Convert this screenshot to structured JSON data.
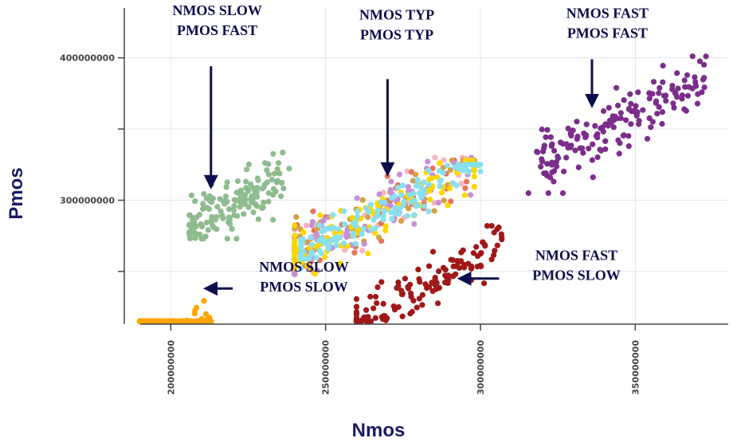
{
  "chart_data": {
    "type": "scatter",
    "xlabel": "Nmos",
    "ylabel": "Pmos",
    "xlim": [
      185000000,
      380000000
    ],
    "ylim": [
      213000000,
      435000000
    ],
    "xticks": [
      {
        "value": 200000000,
        "label": "200000000"
      },
      {
        "value": 250000000,
        "label": "250000000"
      },
      {
        "value": 300000000,
        "label": "300000000"
      },
      {
        "value": 350000000,
        "label": "350000000"
      }
    ],
    "yticks": [
      {
        "value": 250000000,
        "label": ""
      },
      {
        "value": 300000000,
        "label": "300000000"
      },
      {
        "value": 350000000,
        "label": ""
      },
      {
        "value": 400000000,
        "label": "400000000"
      }
    ],
    "grid": true,
    "series": [
      {
        "color": "#ffa500",
        "n": 160,
        "x_center": 200000000,
        "x_spread": 14000000,
        "slope": 1.0,
        "y_intercept": 0,
        "y_noise": 7500000,
        "x_min": 190000000,
        "x_max": 216000000,
        "y_min": 215000000,
        "y_max": 256000000,
        "seed": 11
      },
      {
        "color": "#8fbc8f",
        "n": 150,
        "x_center": 221000000,
        "x_spread": 18000000,
        "slope": 1.1,
        "y_intercept": 54000000,
        "y_noise": 9000000,
        "x_min": 206000000,
        "x_max": 242000000,
        "y_min": 273000000,
        "y_max": 355000000,
        "seed": 23
      },
      {
        "color": "#f4b6c2",
        "n": 30,
        "x_center": 263000000,
        "x_spread": 38000000,
        "slope": 1.1,
        "y_intercept": -3000000,
        "y_noise": 12000000,
        "x_min": 240000000,
        "x_max": 300000000,
        "y_min": 248000000,
        "y_max": 330000000,
        "seed": 31
      },
      {
        "color": "#e6735c",
        "n": 60,
        "x_center": 262000000,
        "x_spread": 38000000,
        "slope": 1.1,
        "y_intercept": -3000000,
        "y_noise": 10000000,
        "x_min": 240000000,
        "x_max": 298000000,
        "y_min": 248000000,
        "y_max": 328000000,
        "seed": 37
      },
      {
        "color": "#d4a046",
        "n": 60,
        "x_center": 262000000,
        "x_spread": 38000000,
        "slope": 1.1,
        "y_intercept": -3000000,
        "y_noise": 11000000,
        "x_min": 240000000,
        "x_max": 298000000,
        "y_min": 248000000,
        "y_max": 328000000,
        "seed": 41
      },
      {
        "color": "#c78fd8",
        "n": 60,
        "x_center": 263000000,
        "x_spread": 38000000,
        "slope": 1.1,
        "y_intercept": -3000000,
        "y_noise": 11000000,
        "x_min": 240000000,
        "x_max": 298000000,
        "y_min": 248000000,
        "y_max": 330000000,
        "seed": 43
      },
      {
        "color": "#ffd700",
        "n": 110,
        "x_center": 266000000,
        "x_spread": 38000000,
        "slope": 1.1,
        "y_intercept": -3000000,
        "y_noise": 9000000,
        "x_min": 240000000,
        "x_max": 298000000,
        "y_min": 248000000,
        "y_max": 328000000,
        "seed": 47
      },
      {
        "color": "#88e0f0",
        "n": 140,
        "x_center": 267000000,
        "x_spread": 38000000,
        "slope": 1.1,
        "y_intercept": -3000000,
        "y_noise": 7000000,
        "x_min": 242000000,
        "x_max": 300000000,
        "y_min": 252000000,
        "y_max": 325000000,
        "seed": 53
      },
      {
        "color": "#7b2d8b",
        "n": 170,
        "x_center": 345000000,
        "x_spread": 30000000,
        "slope": 1.18,
        "y_intercept": -52000000,
        "y_noise": 11000000,
        "x_min": 315000000,
        "x_max": 380000000,
        "y_min": 305000000,
        "y_max": 410000000,
        "seed": 61
      },
      {
        "color": "#a01818",
        "n": 150,
        "x_center": 280000000,
        "x_spread": 30000000,
        "slope": 1.2,
        "y_intercept": -98000000,
        "y_noise": 9000000,
        "x_min": 260000000,
        "x_max": 312000000,
        "y_min": 215000000,
        "y_max": 282000000,
        "seed": 71
      }
    ],
    "annotations": [
      {
        "lines": [
          "NMOS SLOW",
          "PMOS FAST"
        ],
        "label_x": 215000000,
        "label_y": 430000000,
        "arrow_from": [
          213000000,
          394000000
        ],
        "arrow_to": [
          213000000,
          311000000
        ]
      },
      {
        "lines": [
          "NMOS TYP",
          "PMOS TYP"
        ],
        "label_x": 273000000,
        "label_y": 427000000,
        "arrow_from": [
          270000000,
          385000000
        ],
        "arrow_to": [
          270000000,
          320000000
        ]
      },
      {
        "lines": [
          "NMOS FAST",
          "PMOS FAST"
        ],
        "label_x": 341000000,
        "label_y": 428000000,
        "arrow_from": [
          336000000,
          399000000
        ],
        "arrow_to": [
          336000000,
          368000000
        ]
      },
      {
        "lines": [
          "NMOS SLOW",
          "PMOS SLOW"
        ],
        "label_x": 243000000,
        "label_y": 250000000,
        "arrow_from": [
          220000000,
          238000000
        ],
        "arrow_to": [
          212000000,
          238000000
        ]
      },
      {
        "lines": [
          "NMOS FAST",
          "PMOS SLOW"
        ],
        "label_x": 331000000,
        "label_y": 258000000,
        "arrow_from": [
          306000000,
          245000000
        ],
        "arrow_to": [
          294000000,
          245000000
        ]
      }
    ]
  }
}
